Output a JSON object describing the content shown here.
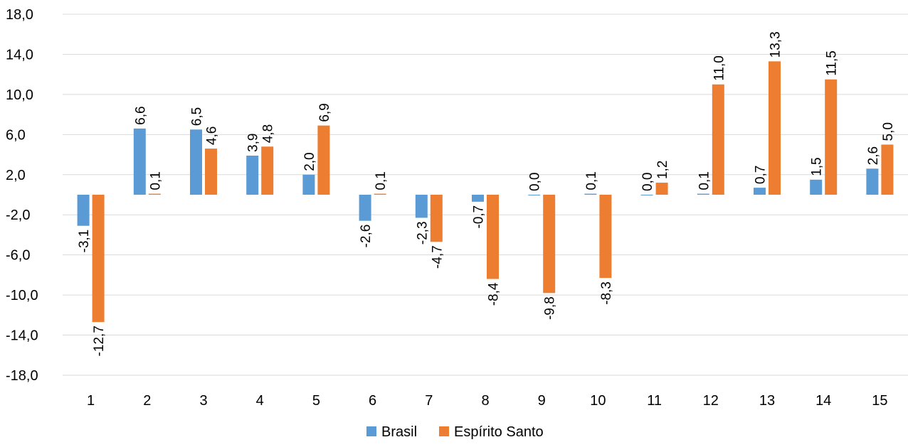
{
  "chart_data": {
    "type": "bar",
    "title": "",
    "xlabel": "",
    "ylabel": "",
    "categories": [
      "1",
      "2",
      "3",
      "4",
      "5",
      "6",
      "7",
      "8",
      "9",
      "10",
      "11",
      "12",
      "13",
      "14",
      "15"
    ],
    "series": [
      {
        "name": "Brasil",
        "color": "#5b9bd5",
        "values": [
          -3.1,
          6.6,
          6.5,
          3.9,
          2.0,
          -2.6,
          -2.3,
          -0.7,
          0.0,
          0.1,
          0.0,
          0.1,
          0.7,
          1.5,
          2.6
        ],
        "labels": [
          "-3,1",
          "6,6",
          "6,5",
          "3,9",
          "2,0",
          "-2,6",
          "-2,3",
          "-0,7",
          "0,0",
          "0,1",
          "0,0",
          "0,1",
          "0,7",
          "1,5",
          "2,6"
        ]
      },
      {
        "name": "Espírito Santo",
        "color": "#ed7d31",
        "values": [
          -12.7,
          0.1,
          4.6,
          4.8,
          6.9,
          0.1,
          -4.7,
          -8.4,
          -9.8,
          -8.3,
          1.2,
          11.0,
          13.3,
          11.5,
          5.0
        ],
        "labels": [
          "-12,7",
          "0,1",
          "4,6",
          "4,8",
          "6,9",
          "0,1",
          "-4,7",
          "-8,4",
          "-9,8",
          "-8,3",
          "1,2",
          "11,0",
          "13,3",
          "11,5",
          "5,0"
        ]
      }
    ],
    "ylim": [
      -18,
      18
    ],
    "yticks": [
      18,
      14,
      10,
      6,
      2,
      -2,
      -6,
      -10,
      -14,
      -18
    ],
    "ytick_labels": [
      "18,0",
      "14,0",
      "10,0",
      "6,0",
      "2,0",
      "-2,0",
      "-6,0",
      "-10,0",
      "-14,0",
      "-18,0"
    ],
    "grid": true,
    "legend_position": "bottom"
  }
}
